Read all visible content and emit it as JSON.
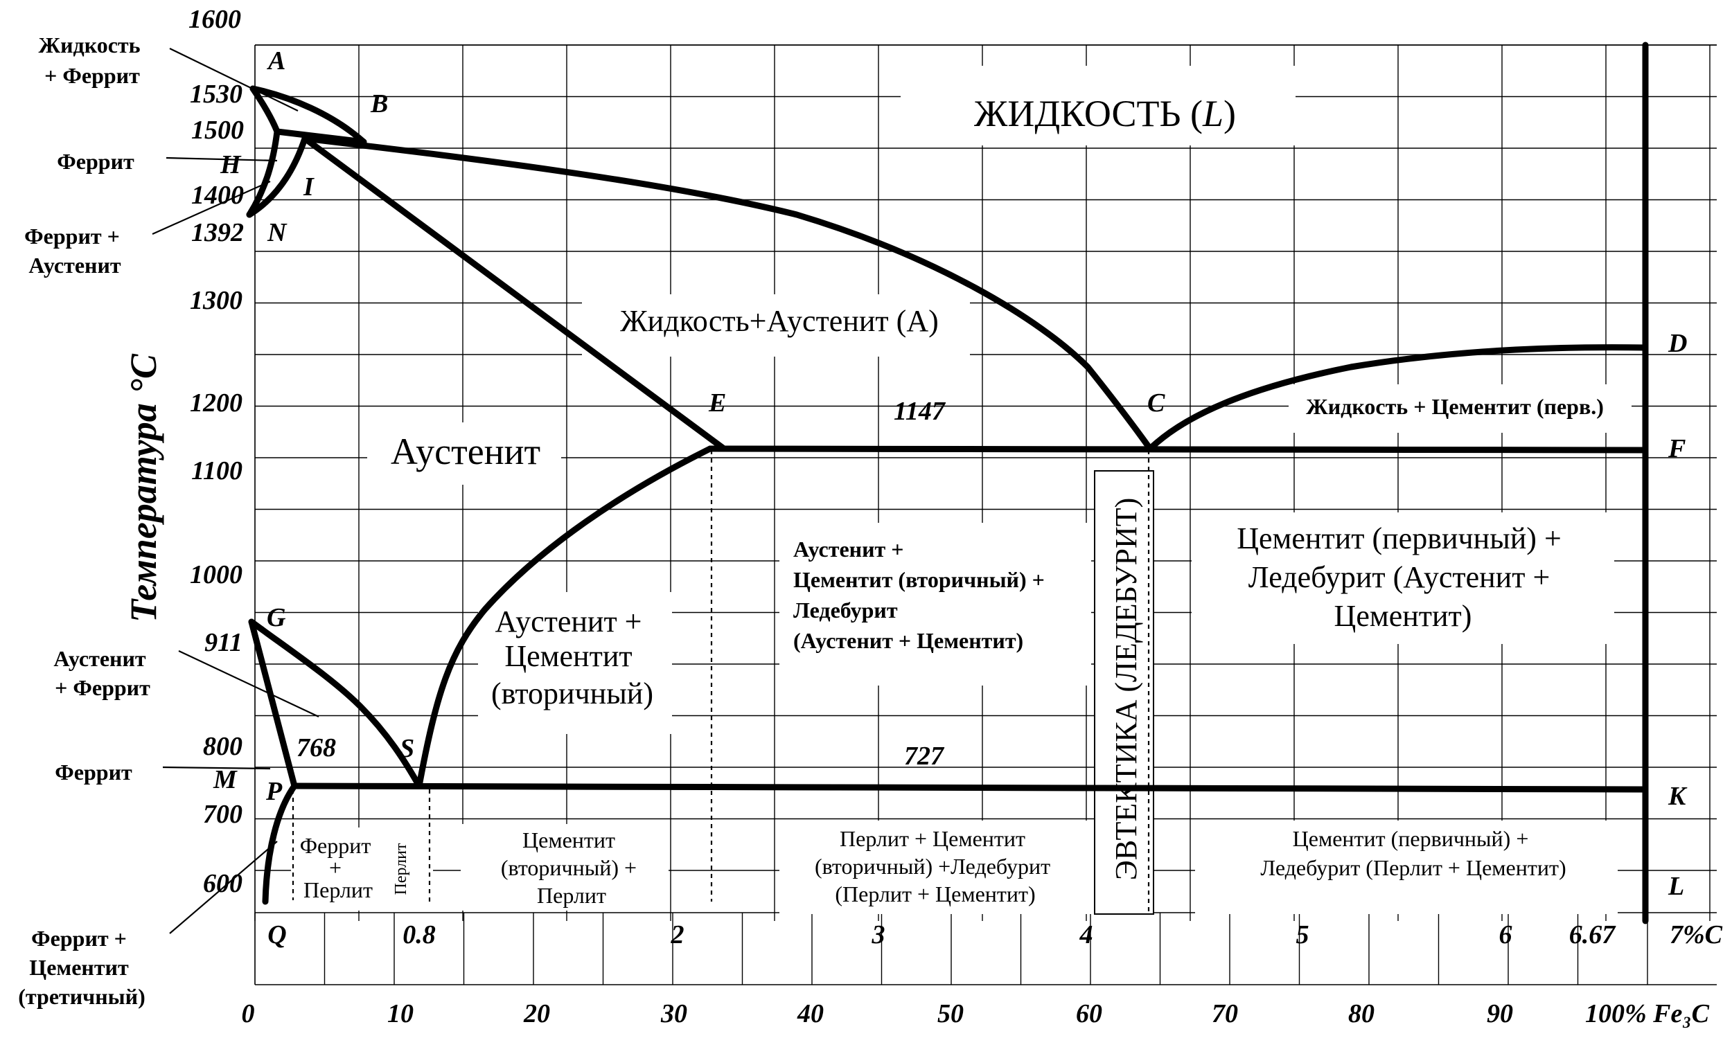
{
  "y_axis_title": "Температура °C",
  "temperature_ticks": [
    "1600",
    "1530",
    "1500",
    "1400",
    "1392",
    "1300",
    "1200",
    "1100",
    "1000",
    "911",
    "800",
    "700",
    "600"
  ],
  "carbon_ticks": [
    "Q",
    "0.8",
    "2",
    "3",
    "4",
    "5",
    "6",
    "6.67",
    "7%C"
  ],
  "fe3c_ticks": [
    "0",
    "10",
    "20",
    "30",
    "40",
    "50",
    "60",
    "70",
    "80",
    "90",
    "100% Fe₃C"
  ],
  "points": {
    "A": "A",
    "B": "B",
    "H": "H",
    "I": "I",
    "N": "N",
    "E": "E",
    "C": "C",
    "D": "D",
    "F": "F",
    "G": "G",
    "S": "S",
    "P": "P",
    "M": "M",
    "K": "K",
    "L": "L",
    "t1147": "1147",
    "t727": "727",
    "t768": "768"
  },
  "regions": {
    "liquid_pre": "ЖИДКОСТЬ (",
    "liquid_L": "L",
    "liquid_post": ")",
    "liquid_austenite": "Жидкость+Аустенит (А)",
    "austenite": "Аустенит",
    "liquid_cementite": "Жидкость + Цементит (перв.)",
    "aus_cem_sec": [
      "Аустенит +",
      "Цементит",
      "(вторичный)"
    ],
    "aus_cem_led": [
      "Аустенит +",
      "Цементит (вторичный) +",
      "Ледебурит",
      "(Аустенит + Цементит)"
    ],
    "cem_led_aus": [
      "Цементит (первичный) +",
      "Ледебурит (Аустенит +",
      "Цементит)"
    ],
    "eutectic": "ЭВТЕКТИКА (ЛЕДЕБУРИТ)",
    "ferrite_pearlite": [
      "Феррит",
      "+",
      "Перлит"
    ],
    "pearlite": "Перлит",
    "cem_sec_pearlite": [
      "Цементит",
      "(вторичный) +",
      "Перлит"
    ],
    "pearl_cem_led": [
      "Перлит + Цементит",
      "(вторичный) +Ледебурит",
      "(Перлит + Цементит)"
    ],
    "cem_led_pearl": [
      "Цементит (первичный) +",
      "Ледебурит (Перлит + Цементит)"
    ]
  },
  "side_labels": {
    "liquid_ferrite": [
      "Жидкость",
      "+ Феррит"
    ],
    "ferrite_top": "Феррит",
    "ferrite_austenite": [
      "Феррит +",
      "Аустенит"
    ],
    "austenite_ferrite": [
      "Аустенит",
      "+ Феррит"
    ],
    "ferrite_low": "Феррит",
    "ferrite_cem3": [
      "Феррит +",
      "Цементит",
      "(третичный)"
    ]
  }
}
